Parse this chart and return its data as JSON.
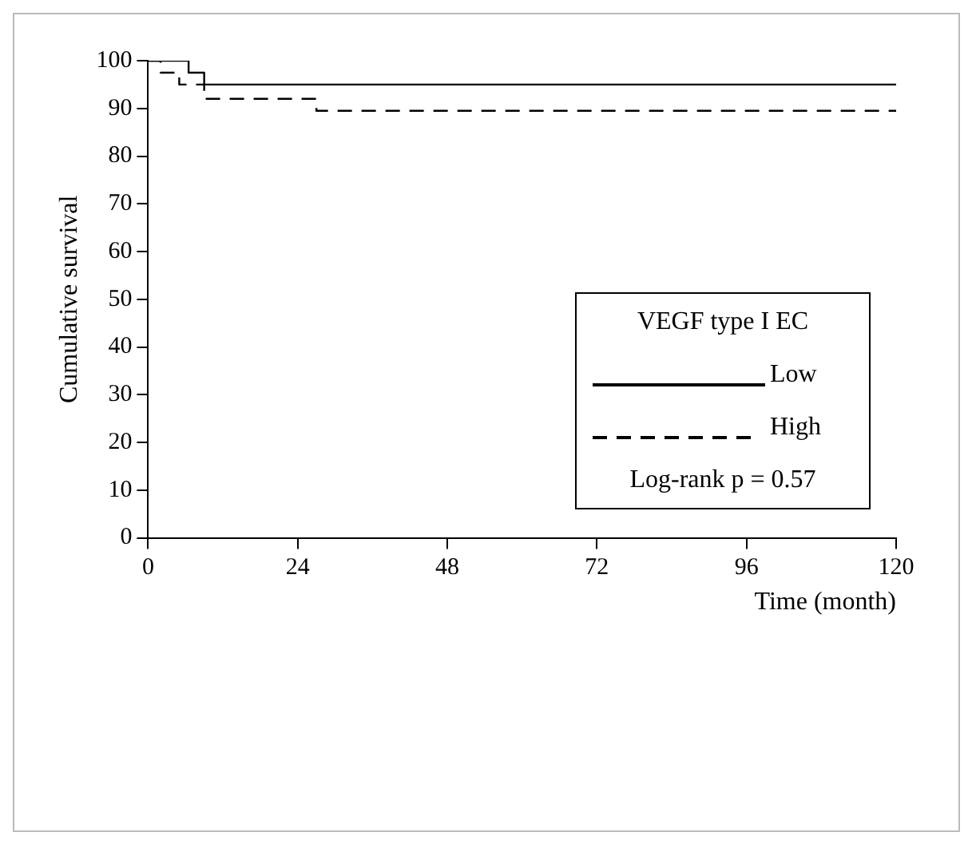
{
  "chart_data": {
    "type": "step",
    "xlabel": "Time (month)",
    "ylabel": "Cumulative survival",
    "legend_title": "VEGF type I EC",
    "series": [
      {
        "name": "Low",
        "color": "#000000",
        "line_style": "solid",
        "x": [
          0,
          6.5,
          9,
          120
        ],
        "values": [
          100,
          97.5,
          95,
          95
        ]
      },
      {
        "name": "High",
        "color": "#000000",
        "line_style": "dashed",
        "x": [
          0,
          2,
          5,
          9,
          27,
          120
        ],
        "values": [
          100,
          97.5,
          95,
          92,
          89.5,
          89.5
        ]
      }
    ],
    "xlim": [
      0,
      120
    ],
    "xticks": [
      0,
      24,
      48,
      72,
      96,
      120
    ],
    "ylim": [
      0,
      100
    ],
    "yticks": [
      0,
      10,
      20,
      30,
      40,
      50,
      60,
      70,
      80,
      90,
      100
    ],
    "grid": false,
    "legend": "bottom right",
    "marker": "none",
    "annotations": [
      "Log-rank p = 0.57"
    ]
  }
}
